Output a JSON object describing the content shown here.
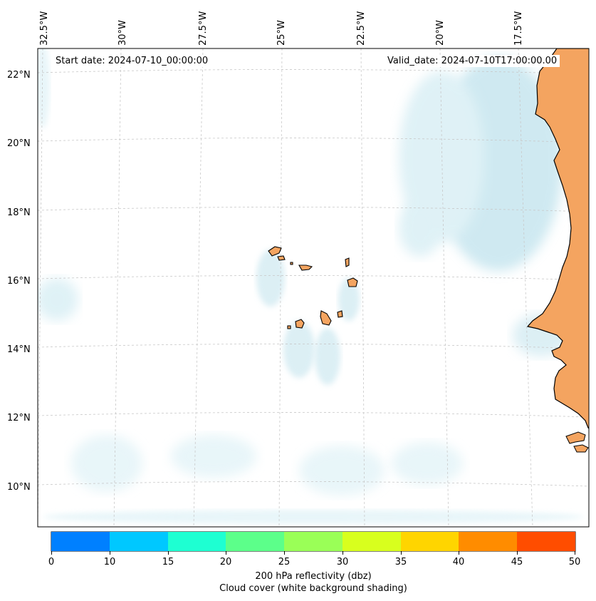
{
  "map": {
    "longitude_labels": [
      "32.5°W",
      "30°W",
      "27.5°W",
      "25°W",
      "22.5°W",
      "20°W",
      "17.5°W"
    ],
    "latitude_labels": [
      "22°N",
      "20°N",
      "18°N",
      "16°N",
      "14°N",
      "12°N",
      "10°N"
    ],
    "start_date": "Start date: 2024-07-10_00:00:00",
    "valid_date": "Valid_date: 2024-07-10T17:00:00.00",
    "land_color": "#f4a460",
    "cloud_color": "#a8d8e6"
  },
  "colorbar": {
    "colors": [
      "#0080ff",
      "#00c8ff",
      "#1effd2",
      "#5cff8a",
      "#9aff57",
      "#d8ff1e",
      "#ffd500",
      "#ff8c00",
      "#ff4d00"
    ],
    "ticks": [
      "0",
      "10",
      "15",
      "20",
      "25",
      "30",
      "35",
      "40",
      "45",
      "50"
    ],
    "label_line1": "200 hPa reflectivity (dbz)",
    "label_line2": "Cloud cover (white background shading)"
  }
}
